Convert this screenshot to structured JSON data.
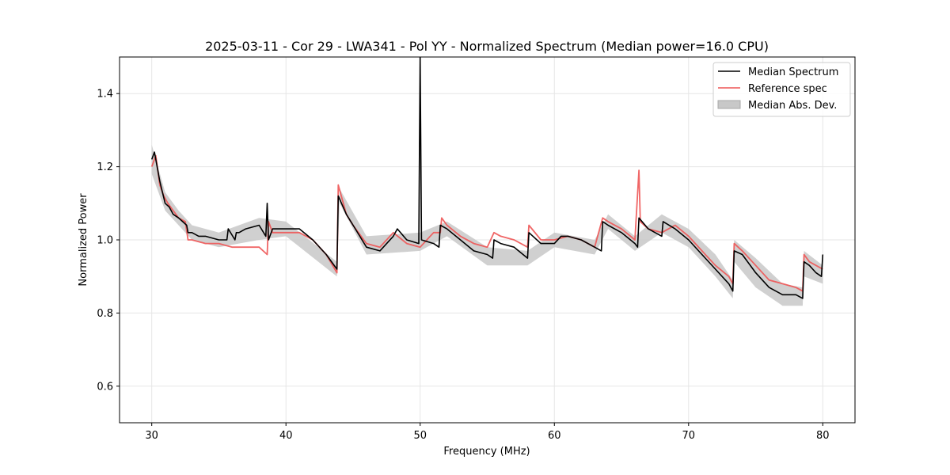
{
  "chart_data": {
    "type": "line",
    "title": "2025-03-11 - Cor 29 - LWA341 - Pol YY - Normalized Spectrum (Median power=16.0 CPU)",
    "xlabel": "Frequency (MHz)",
    "ylabel": "Normalized Power",
    "xlim": [
      27.6,
      82.4
    ],
    "ylim": [
      0.5,
      1.5
    ],
    "xticks": [
      30,
      40,
      50,
      60,
      70,
      80
    ],
    "yticks": [
      0.6,
      0.8,
      1.0,
      1.2,
      1.4
    ],
    "xtick_labels": [
      "30",
      "40",
      "50",
      "60",
      "70",
      "80"
    ],
    "ytick_labels": [
      "0.6",
      "0.8",
      "1.0",
      "1.2",
      "1.4"
    ],
    "grid": true,
    "legend_position": "top-right",
    "legend": [
      "Median Spectrum",
      "Reference spec",
      "Median Abs. Dev."
    ],
    "series": [
      {
        "name": "Median Spectrum",
        "color": "#000000",
        "x": [
          30.0,
          30.2,
          30.4,
          30.6,
          30.8,
          31.0,
          31.3,
          31.6,
          32.0,
          32.3,
          32.6,
          32.7,
          33.0,
          33.5,
          34.0,
          35.0,
          35.6,
          35.7,
          36.2,
          36.3,
          36.5,
          37.0,
          38.0,
          38.5,
          38.6,
          38.7,
          39.0,
          40.0,
          41.0,
          42.0,
          43.0,
          43.8,
          43.9,
          44.5,
          45.0,
          46.0,
          47.0,
          48.0,
          48.3,
          49.0,
          49.9,
          50.0,
          50.1,
          51.0,
          51.4,
          51.5,
          52.0,
          53.0,
          54.0,
          55.0,
          55.4,
          55.5,
          56.0,
          57.0,
          58.0,
          58.1,
          59.0,
          60.0,
          60.5,
          61.0,
          62.0,
          63.0,
          63.5,
          63.6,
          64.0,
          65.0,
          66.0,
          66.2,
          66.3,
          67.0,
          68.0,
          68.1,
          69.0,
          70.0,
          71.0,
          72.0,
          73.0,
          73.3,
          73.4,
          74.0,
          75.0,
          76.0,
          77.0,
          78.0,
          78.5,
          78.6,
          79.0,
          79.5,
          79.9,
          80.0
        ],
        "values": [
          1.22,
          1.24,
          1.2,
          1.16,
          1.13,
          1.1,
          1.09,
          1.07,
          1.06,
          1.05,
          1.04,
          1.02,
          1.02,
          1.01,
          1.01,
          1.0,
          1.0,
          1.03,
          1.0,
          1.02,
          1.02,
          1.03,
          1.04,
          1.01,
          1.1,
          1.0,
          1.03,
          1.03,
          1.03,
          1.0,
          0.96,
          0.92,
          1.12,
          1.07,
          1.04,
          0.98,
          0.97,
          1.01,
          1.03,
          1.0,
          0.99,
          1.5,
          1.0,
          0.99,
          0.98,
          1.04,
          1.03,
          1.0,
          0.97,
          0.96,
          0.95,
          1.0,
          0.99,
          0.98,
          0.95,
          1.02,
          0.99,
          0.99,
          1.01,
          1.01,
          1.0,
          0.98,
          0.97,
          1.05,
          1.04,
          1.02,
          0.99,
          0.98,
          1.06,
          1.03,
          1.01,
          1.05,
          1.03,
          1.0,
          0.96,
          0.92,
          0.88,
          0.86,
          0.97,
          0.96,
          0.91,
          0.87,
          0.85,
          0.85,
          0.84,
          0.94,
          0.93,
          0.91,
          0.9,
          0.96
        ]
      },
      {
        "name": "Reference spec",
        "color": "#ee5555",
        "x": [
          30.0,
          30.3,
          30.6,
          30.9,
          31.2,
          31.6,
          32.0,
          32.5,
          32.7,
          33.0,
          34.0,
          35.0,
          36.0,
          37.0,
          38.0,
          38.6,
          38.7,
          39.0,
          40.0,
          41.0,
          42.0,
          43.0,
          43.8,
          43.9,
          44.5,
          45.0,
          46.0,
          47.0,
          48.0,
          49.0,
          50.0,
          51.0,
          51.5,
          51.6,
          52.0,
          53.0,
          54.0,
          55.0,
          55.5,
          56.0,
          57.0,
          58.0,
          58.1,
          59.0,
          60.0,
          61.0,
          62.0,
          63.0,
          63.6,
          64.0,
          65.0,
          66.0,
          66.3,
          66.4,
          67.0,
          68.0,
          69.0,
          70.0,
          71.0,
          72.0,
          73.0,
          73.3,
          73.4,
          74.0,
          75.0,
          76.0,
          77.0,
          78.0,
          78.5,
          78.6,
          79.0,
          80.0
        ],
        "values": [
          1.2,
          1.23,
          1.15,
          1.12,
          1.1,
          1.08,
          1.06,
          1.05,
          1.0,
          1.0,
          0.99,
          0.99,
          0.98,
          0.98,
          0.98,
          0.96,
          1.05,
          1.02,
          1.02,
          1.02,
          1.0,
          0.96,
          0.91,
          1.15,
          1.07,
          1.04,
          0.99,
          0.98,
          1.02,
          0.99,
          0.98,
          1.02,
          1.02,
          1.06,
          1.04,
          1.01,
          0.99,
          0.98,
          1.02,
          1.01,
          1.0,
          0.98,
          1.04,
          1.0,
          1.0,
          1.01,
          1.0,
          0.98,
          1.06,
          1.05,
          1.03,
          1.0,
          1.19,
          1.05,
          1.03,
          1.02,
          1.04,
          1.01,
          0.97,
          0.93,
          0.9,
          0.88,
          0.99,
          0.97,
          0.93,
          0.89,
          0.88,
          0.87,
          0.86,
          0.96,
          0.94,
          0.92
        ]
      }
    ],
    "band": {
      "name": "Median Abs. Dev.",
      "color": "#c8c8c8",
      "x": [
        30.0,
        31.0,
        32.0,
        33.0,
        35.0,
        38.0,
        40.0,
        43.8,
        44.0,
        46.0,
        50.0,
        52.0,
        55.0,
        58.0,
        60.0,
        63.0,
        64.0,
        66.0,
        68.0,
        70.0,
        72.0,
        73.3,
        73.4,
        75.0,
        77.0,
        78.5,
        78.6,
        80.0
      ],
      "upper": [
        1.26,
        1.13,
        1.08,
        1.04,
        1.02,
        1.06,
        1.05,
        0.94,
        1.14,
        1.01,
        1.02,
        1.05,
        0.98,
        0.97,
        1.02,
        1.0,
        1.07,
        1.01,
        1.07,
        1.03,
        0.96,
        0.89,
        1.0,
        0.95,
        0.88,
        0.87,
        0.97,
        0.93
      ],
      "lower": [
        1.18,
        1.08,
        1.04,
        1.0,
        0.98,
        1.0,
        1.01,
        0.9,
        1.1,
        0.96,
        0.97,
        1.01,
        0.93,
        0.93,
        0.98,
        0.96,
        1.03,
        0.97,
        1.02,
        0.98,
        0.9,
        0.84,
        0.94,
        0.87,
        0.82,
        0.82,
        0.9,
        0.88
      ]
    }
  }
}
